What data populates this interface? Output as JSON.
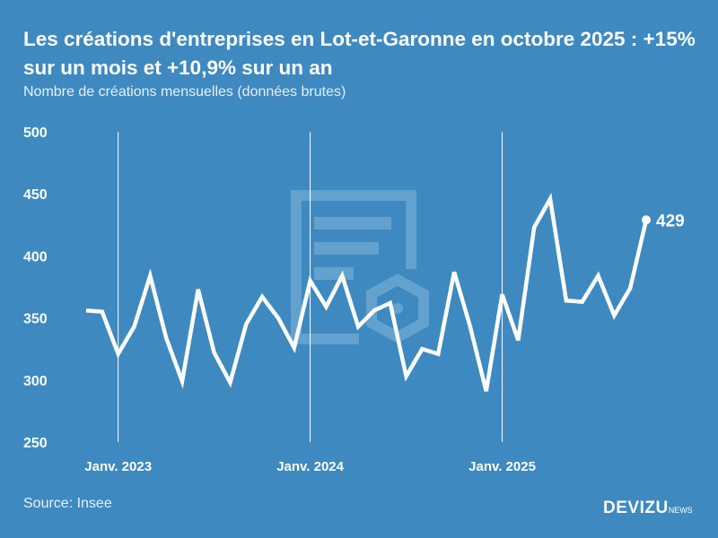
{
  "title": "Les créations d'entreprises en Lot-et-Garonne en octobre 2025 : +15% sur un mois et +10,9% sur un an",
  "subtitle": "Nombre de créations mensuelles (données brutes)",
  "source": "Source: Insee",
  "brand": {
    "name": "DEVIZU",
    "suffix": "NEWS"
  },
  "colors": {
    "background": "#3d89c0",
    "line": "#ffffff",
    "watermark": "#6aa6d2"
  },
  "chart_data": {
    "type": "line",
    "title": "Les créations d'entreprises en Lot-et-Garonne en octobre 2025 : +15% sur un mois et +10,9% sur un an",
    "ylabel": "",
    "xlabel": "",
    "ylim": [
      250,
      500
    ],
    "yticks": [
      250,
      300,
      350,
      400,
      450,
      500
    ],
    "xticks": [
      {
        "label": "Janv. 2023",
        "x": "2023-01"
      },
      {
        "label": "Janv. 2024",
        "x": "2024-01"
      },
      {
        "label": "Janv. 2025",
        "x": "2025-01"
      }
    ],
    "grid": "vertical lines at January",
    "x": [
      "2022-11",
      "2022-12",
      "2023-01",
      "2023-02",
      "2023-03",
      "2023-04",
      "2023-05",
      "2023-06",
      "2023-07",
      "2023-08",
      "2023-09",
      "2023-10",
      "2023-11",
      "2023-12",
      "2024-01",
      "2024-02",
      "2024-03",
      "2024-04",
      "2024-05",
      "2024-06",
      "2024-07",
      "2024-08",
      "2024-09",
      "2024-10",
      "2024-11",
      "2024-12",
      "2025-01",
      "2025-02",
      "2025-03",
      "2025-04",
      "2025-05",
      "2025-06",
      "2025-07",
      "2025-08",
      "2025-09",
      "2025-10"
    ],
    "values": [
      356,
      355,
      321,
      343,
      384,
      334,
      299,
      373,
      322,
      298,
      345,
      367,
      350,
      326,
      380,
      359,
      384,
      343,
      356,
      362,
      303,
      325,
      321,
      387,
      343,
      291,
      369,
      332,
      423,
      446,
      364,
      363,
      384,
      352,
      374,
      429
    ],
    "last_label": "429"
  }
}
